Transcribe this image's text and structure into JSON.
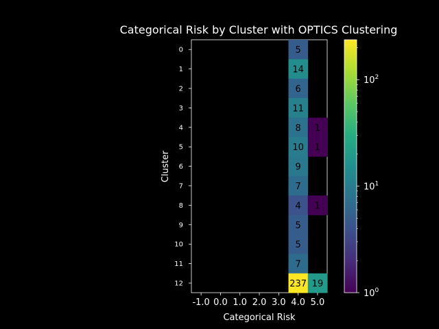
{
  "chart_data": {
    "type": "heatmap",
    "title": "Categorical Risk by Cluster with OPTICS Clustering",
    "xlabel": "Categorical Risk",
    "ylabel": "Cluster",
    "x_categories": [
      "-1.0",
      "0.0",
      "1.0",
      "2.0",
      "3.0",
      "4.0",
      "5.0"
    ],
    "y_categories": [
      "0",
      "1",
      "2",
      "3",
      "4",
      "5",
      "6",
      "7",
      "8",
      "9",
      "10",
      "11",
      "12"
    ],
    "cells": [
      {
        "cluster": "0",
        "risk": "4.0",
        "value": 5
      },
      {
        "cluster": "1",
        "risk": "4.0",
        "value": 14
      },
      {
        "cluster": "2",
        "risk": "4.0",
        "value": 6
      },
      {
        "cluster": "3",
        "risk": "4.0",
        "value": 11
      },
      {
        "cluster": "4",
        "risk": "4.0",
        "value": 8
      },
      {
        "cluster": "4",
        "risk": "5.0",
        "value": 1
      },
      {
        "cluster": "5",
        "risk": "4.0",
        "value": 10
      },
      {
        "cluster": "5",
        "risk": "5.0",
        "value": 1
      },
      {
        "cluster": "6",
        "risk": "4.0",
        "value": 9
      },
      {
        "cluster": "7",
        "risk": "4.0",
        "value": 7
      },
      {
        "cluster": "8",
        "risk": "4.0",
        "value": 4
      },
      {
        "cluster": "8",
        "risk": "5.0",
        "value": 1
      },
      {
        "cluster": "9",
        "risk": "4.0",
        "value": 5
      },
      {
        "cluster": "10",
        "risk": "4.0",
        "value": 5
      },
      {
        "cluster": "11",
        "risk": "4.0",
        "value": 7
      },
      {
        "cluster": "12",
        "risk": "4.0",
        "value": 237
      },
      {
        "cluster": "12",
        "risk": "5.0",
        "value": 19
      }
    ],
    "colorbar": {
      "scale": "log",
      "range": [
        1,
        237
      ],
      "colormap": "viridis",
      "ticks": [
        {
          "value": 1,
          "label": "10",
          "exp": "0"
        },
        {
          "value": 10,
          "label": "10",
          "exp": "1"
        },
        {
          "value": 100,
          "label": "10",
          "exp": "2"
        }
      ]
    },
    "background": "#000000",
    "grid": false
  }
}
